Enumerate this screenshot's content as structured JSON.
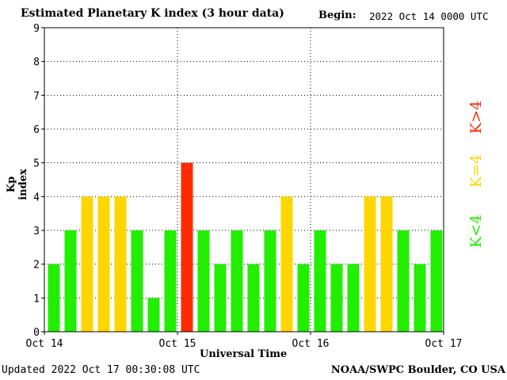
{
  "header": {
    "title": "Estimated Planetary K index (3 hour data)",
    "begin_label": "Begin:",
    "begin_value": "2022 Oct 14 0000 UTC"
  },
  "footer": {
    "updated": "Updated 2022 Oct 17 00:30:08 UTC",
    "credit": "NOAA/SWPC Boulder, CO USA"
  },
  "legend": {
    "gt": "K>4",
    "eq": "K=4",
    "lt": "K<4"
  },
  "colors": {
    "below_4": "#22ee00",
    "equal_4": "#ffd600",
    "above_4": "#ff2a00"
  },
  "chart_data": {
    "type": "bar",
    "title": "Estimated Planetary K index (3 hour data)",
    "xlabel": "Universal Time",
    "ylabel": "Kp index",
    "ylim": [
      0,
      9
    ],
    "yticks": [
      0,
      1,
      2,
      3,
      4,
      5,
      6,
      7,
      8,
      9
    ],
    "xtick_labels": [
      "Oct 14",
      "Oct 15",
      "Oct 16",
      "Oct 17"
    ],
    "grid": "dotted",
    "values": [
      2,
      3,
      4,
      4,
      4,
      3,
      1,
      3,
      5,
      3,
      2,
      3,
      2,
      3,
      4,
      2,
      3,
      2,
      2,
      4,
      4,
      3,
      2,
      3
    ]
  }
}
